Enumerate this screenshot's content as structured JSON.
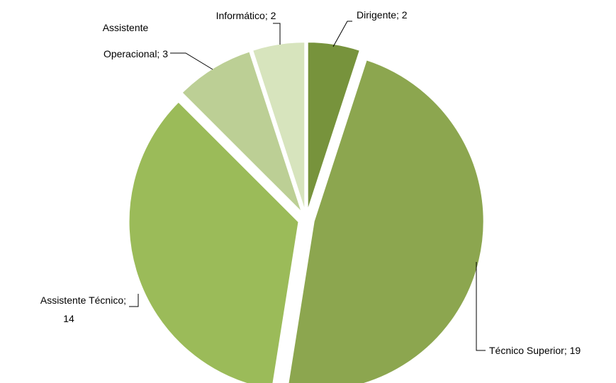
{
  "chart_data": {
    "type": "pie",
    "values": [
      2,
      19,
      14,
      3,
      2
    ],
    "labels": [
      [
        "Dirigente; 2"
      ],
      [
        "Técnico Superior; 19"
      ],
      [
        "Assistente Técnico;",
        "14"
      ],
      [
        "Assistente",
        "Operacional; 3"
      ],
      [
        "Informático; 2"
      ]
    ],
    "colors": [
      "#77933c",
      "#8ca64f",
      "#9bbb59",
      "#bccf95",
      "#d7e4bd"
    ],
    "start_angle": 0,
    "direction": "clockwise",
    "exploded": true
  }
}
